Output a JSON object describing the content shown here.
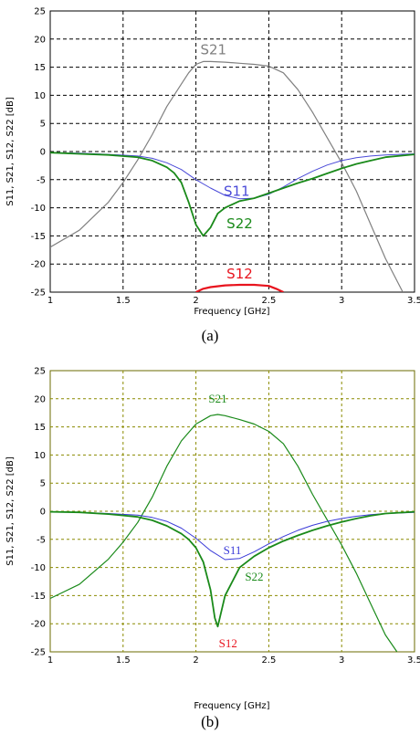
{
  "chart_data": [
    {
      "type": "line",
      "caption": "(a)",
      "xlabel": "Frequency [GHz]",
      "ylabel": "S11, S21, S12, S22 [dB]",
      "xlim": [
        1,
        3.5
      ],
      "ylim": [
        -25,
        25
      ],
      "xticks": [
        1,
        1.5,
        2,
        2.5,
        3,
        3.5
      ],
      "yticks": [
        25,
        20,
        15,
        10,
        5,
        0,
        -5,
        -10,
        -15,
        -20,
        -25
      ],
      "xtick_labels": [
        "1",
        "1.5",
        "2",
        "2.5",
        "3",
        "3.5"
      ],
      "ytick_labels": [
        "25",
        "20",
        "15",
        "10",
        "5",
        "0",
        "-5",
        "-10",
        "-15",
        "-20",
        "-25"
      ],
      "grid": true,
      "background": "#ffffff",
      "grid_color": "#000000",
      "series": [
        {
          "name": "S21",
          "color": "#808080",
          "width": 1.2,
          "label_at": [
            2.12,
            17.3
          ],
          "x": [
            1.0,
            1.2,
            1.4,
            1.5,
            1.6,
            1.7,
            1.8,
            1.9,
            1.95,
            2.0,
            2.05,
            2.1,
            2.2,
            2.3,
            2.4,
            2.5,
            2.6,
            2.7,
            2.8,
            2.9,
            3.0,
            3.1,
            3.2,
            3.3,
            3.42
          ],
          "y": [
            -17,
            -14,
            -9,
            -5.5,
            -1.5,
            3,
            8,
            12,
            14,
            15.5,
            16,
            16,
            15.9,
            15.7,
            15.5,
            15.2,
            14,
            11,
            7,
            2.5,
            -2,
            -7,
            -13,
            -19,
            -25
          ]
        },
        {
          "name": "S11",
          "color": "#4a4ad8",
          "width": 1.0,
          "label_at": [
            2.28,
            -7.9
          ],
          "x": [
            1.0,
            1.2,
            1.4,
            1.6,
            1.7,
            1.8,
            1.9,
            2.0,
            2.1,
            2.2,
            2.3,
            2.4,
            2.5,
            2.6,
            2.7,
            2.8,
            2.9,
            3.0,
            3.1,
            3.2,
            3.3,
            3.5
          ],
          "y": [
            -0.2,
            -0.3,
            -0.5,
            -0.8,
            -1.2,
            -2,
            -3.2,
            -5,
            -6.5,
            -7.8,
            -8.4,
            -8.3,
            -7.6,
            -6.3,
            -4.8,
            -3.5,
            -2.4,
            -1.6,
            -1.1,
            -0.8,
            -0.6,
            -0.4
          ]
        },
        {
          "name": "S22",
          "color": "#1a8a1a",
          "width": 1.8,
          "label_at": [
            2.3,
            -13.6
          ],
          "x": [
            1.0,
            1.2,
            1.4,
            1.6,
            1.7,
            1.8,
            1.85,
            1.9,
            1.95,
            2.0,
            2.05,
            2.1,
            2.15,
            2.2,
            2.3,
            2.4,
            2.5,
            2.6,
            2.7,
            2.8,
            2.9,
            3.0,
            3.1,
            3.2,
            3.3,
            3.5
          ],
          "y": [
            -0.2,
            -0.4,
            -0.6,
            -1.0,
            -1.6,
            -2.8,
            -3.8,
            -5.5,
            -9,
            -13,
            -15,
            -13.5,
            -11,
            -10,
            -8.8,
            -8.3,
            -7.4,
            -6.5,
            -5.6,
            -4.8,
            -3.9,
            -3.0,
            -2.2,
            -1.6,
            -1.0,
            -0.5
          ]
        },
        {
          "name": "S12",
          "color": "#e8141e",
          "width": 2.2,
          "label_at": [
            2.3,
            -22.6
          ],
          "x": [
            2.0,
            2.05,
            2.1,
            2.2,
            2.3,
            2.4,
            2.5,
            2.55,
            2.6
          ],
          "y": [
            -25,
            -24.4,
            -24.1,
            -23.8,
            -23.7,
            -23.7,
            -23.9,
            -24.4,
            -25
          ]
        }
      ]
    },
    {
      "type": "line",
      "caption": "(b)",
      "xlabel": "Frequency [GHz]",
      "ylabel": "S11, S21, S12, S22 [dB]",
      "xlim": [
        1,
        3.5
      ],
      "ylim": [
        -25,
        25
      ],
      "xticks": [
        1,
        1.5,
        2,
        2.5,
        3,
        3.5
      ],
      "yticks": [
        25,
        20,
        15,
        10,
        5,
        0,
        -5,
        -10,
        -15,
        -20,
        -25
      ],
      "xtick_labels": [
        "1",
        "1.5",
        "2",
        "2.5",
        "3",
        "3.5"
      ],
      "ytick_labels": [
        "25",
        "20",
        "15",
        "10",
        "5",
        "0",
        "-5",
        "-10",
        "-15",
        "-20",
        "-25"
      ],
      "grid": true,
      "background": "#ffffff",
      "grid_color": "#8a8a00",
      "series": [
        {
          "name": "S21",
          "color": "#1a8a1a",
          "width": 1.2,
          "label_at": [
            2.15,
            19.3
          ],
          "x": [
            1.0,
            1.2,
            1.4,
            1.5,
            1.6,
            1.7,
            1.8,
            1.9,
            2.0,
            2.1,
            2.15,
            2.2,
            2.3,
            2.4,
            2.5,
            2.6,
            2.7,
            2.8,
            2.9,
            3.0,
            3.1,
            3.2,
            3.3,
            3.38
          ],
          "y": [
            -15.5,
            -13,
            -8.5,
            -5.5,
            -2,
            2.5,
            8,
            12.5,
            15.5,
            17,
            17.2,
            17,
            16.3,
            15.5,
            14.2,
            12,
            8,
            3,
            -1.5,
            -6,
            -11,
            -16.5,
            -22,
            -25
          ]
        },
        {
          "name": "S11",
          "color": "#3a3ad8",
          "width": 1.0,
          "label_at": [
            2.25,
            -7.6
          ],
          "x": [
            1.0,
            1.2,
            1.4,
            1.6,
            1.7,
            1.8,
            1.9,
            2.0,
            2.1,
            2.2,
            2.3,
            2.4,
            2.5,
            2.6,
            2.7,
            2.8,
            2.9,
            3.0,
            3.1,
            3.2,
            3.3,
            3.5
          ],
          "y": [
            -0.1,
            -0.2,
            -0.4,
            -0.7,
            -1.1,
            -1.8,
            -3,
            -4.8,
            -7,
            -8.6,
            -8.4,
            -7.2,
            -5.8,
            -4.5,
            -3.4,
            -2.5,
            -1.8,
            -1.3,
            -0.9,
            -0.6,
            -0.4,
            -0.2
          ]
        },
        {
          "name": "S22",
          "color": "#1a8a1a",
          "width": 1.8,
          "label_at": [
            2.4,
            -12.3
          ],
          "x": [
            1.0,
            1.2,
            1.4,
            1.6,
            1.7,
            1.8,
            1.9,
            1.95,
            2.0,
            2.05,
            2.1,
            2.13,
            2.15,
            2.2,
            2.3,
            2.4,
            2.5,
            2.6,
            2.7,
            2.8,
            2.9,
            3.0,
            3.1,
            3.2,
            3.3,
            3.5
          ],
          "y": [
            -0.1,
            -0.2,
            -0.5,
            -1.0,
            -1.6,
            -2.6,
            -4.0,
            -5.0,
            -6.5,
            -9,
            -14,
            -19,
            -20.5,
            -15,
            -10,
            -8,
            -6.5,
            -5.3,
            -4.3,
            -3.4,
            -2.6,
            -1.9,
            -1.3,
            -0.8,
            -0.4,
            -0.1
          ]
        },
        {
          "name": "S12",
          "color": "#e8141e",
          "width": 1.0,
          "label_at": [
            2.22,
            -24.2
          ],
          "x": [],
          "y": []
        }
      ]
    }
  ]
}
